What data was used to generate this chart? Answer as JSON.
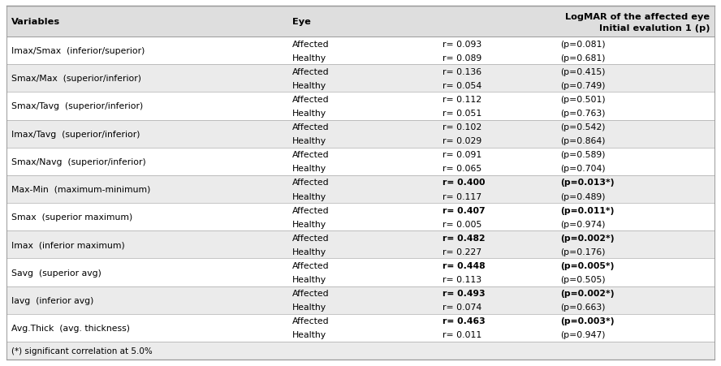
{
  "col_header_line1": "LogMAR of the affected eye",
  "col_header_line2": "Initial evalution 1 (p)",
  "rows": [
    {
      "variable": "Imax/Smax  (inferior/superior)",
      "data": [
        {
          "eye": "Affected",
          "r": "r= 0.093",
          "p": "(p=0.081)",
          "bold": false
        },
        {
          "eye": "Healthy",
          "r": "r= 0.089",
          "p": "(p=0.681)",
          "bold": false
        }
      ],
      "shaded": false
    },
    {
      "variable": "Smax/Max  (superior/inferior)",
      "data": [
        {
          "eye": "Affected",
          "r": "r= 0.136",
          "p": "(p=0.415)",
          "bold": false
        },
        {
          "eye": "Healthy",
          "r": "r= 0.054",
          "p": "(p=0.749)",
          "bold": false
        }
      ],
      "shaded": true
    },
    {
      "variable": "Smax/Tavg  (superior/inferior)",
      "data": [
        {
          "eye": "Affected",
          "r": "r= 0.112",
          "p": "(p=0.501)",
          "bold": false
        },
        {
          "eye": "Healthy",
          "r": "r= 0.051",
          "p": "(p=0.763)",
          "bold": false
        }
      ],
      "shaded": false
    },
    {
      "variable": "Imax/Tavg  (superior/inferior)",
      "data": [
        {
          "eye": "Affected",
          "r": "r= 0.102",
          "p": "(p=0.542)",
          "bold": false
        },
        {
          "eye": "Healthy",
          "r": "r= 0.029",
          "p": "(p=0.864)",
          "bold": false
        }
      ],
      "shaded": true
    },
    {
      "variable": "Smax/Navg  (superior/inferior)",
      "data": [
        {
          "eye": "Affected",
          "r": "r= 0.091",
          "p": "(p=0.589)",
          "bold": false
        },
        {
          "eye": "Healthy",
          "r": "r= 0.065",
          "p": "(p=0.704)",
          "bold": false
        }
      ],
      "shaded": false
    },
    {
      "variable": "Max-Min  (maximum-minimum)",
      "data": [
        {
          "eye": "Affected",
          "r": "r= 0.400",
          "p": "(p=0.013*)",
          "bold": true
        },
        {
          "eye": "Healthy",
          "r": "r= 0.117",
          "p": "(p=0.489)",
          "bold": false
        }
      ],
      "shaded": true
    },
    {
      "variable": "Smax  (superior maximum)",
      "data": [
        {
          "eye": "Affected",
          "r": "r= 0.407",
          "p": "(p=0.011*)",
          "bold": true
        },
        {
          "eye": "Healthy",
          "r": "r= 0.005",
          "p": "(p=0.974)",
          "bold": false
        }
      ],
      "shaded": false
    },
    {
      "variable": "Imax  (inferior maximum)",
      "data": [
        {
          "eye": "Affected",
          "r": "r= 0.482",
          "p": "(p=0.002*)",
          "bold": true
        },
        {
          "eye": "Healthy",
          "r": "r= 0.227",
          "p": "(p=0.176)",
          "bold": false
        }
      ],
      "shaded": true
    },
    {
      "variable": "Savg  (superior avg)",
      "data": [
        {
          "eye": "Affected",
          "r": "r= 0.448",
          "p": "(p=0.005*)",
          "bold": true
        },
        {
          "eye": "Healthy",
          "r": "r= 0.113",
          "p": "(p=0.505)",
          "bold": false
        }
      ],
      "shaded": false
    },
    {
      "variable": "Iavg  (inferior avg)",
      "data": [
        {
          "eye": "Affected",
          "r": "r= 0.493",
          "p": "(p=0.002*)",
          "bold": true
        },
        {
          "eye": "Healthy",
          "r": "r= 0.074",
          "p": "(p=0.663)",
          "bold": false
        }
      ],
      "shaded": true
    },
    {
      "variable": "Avg.Thick  (avg. thickness)",
      "data": [
        {
          "eye": "Affected",
          "r": "r= 0.463",
          "p": "(p=0.003*)",
          "bold": true
        },
        {
          "eye": "Healthy",
          "r": "r= 0.011",
          "p": "(p=0.947)",
          "bold": false
        }
      ],
      "shaded": false
    }
  ],
  "footnote": "(*) significant correlation at 5.0%",
  "header_bg": "#dedede",
  "shaded_bg": "#ebebeb",
  "white_bg": "#ffffff",
  "border_color": "#999999",
  "text_color": "#000000",
  "header_fontsize": 8.2,
  "body_fontsize": 7.8,
  "footnote_fontsize": 7.5,
  "fig_width": 8.88,
  "fig_height": 4.52,
  "dpi": 100
}
